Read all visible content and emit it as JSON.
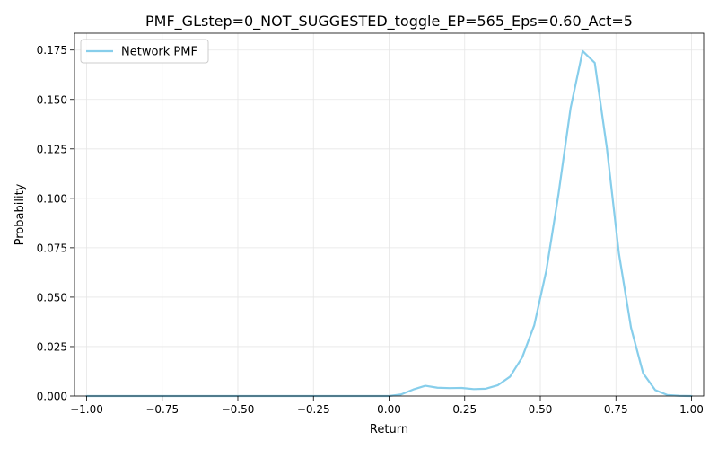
{
  "chart_data": {
    "type": "line",
    "title": "PMF_GLstep=0_NOT_SUGGESTED_toggle_EP=565_Eps=0.60_Act=5",
    "xlabel": "Return",
    "ylabel": "Probability",
    "xlim": [
      -1.04,
      1.04
    ],
    "ylim": [
      0,
      0.1835
    ],
    "grid": true,
    "legend_position": "upper-left",
    "x_ticks": [
      -1.0,
      -0.75,
      -0.5,
      -0.25,
      0.0,
      0.25,
      0.5,
      0.75,
      1.0
    ],
    "x_tick_labels": [
      "−1.00",
      "−0.75",
      "−0.50",
      "−0.25",
      "0.00",
      "0.25",
      "0.50",
      "0.75",
      "1.00"
    ],
    "y_ticks": [
      0.0,
      0.025,
      0.05,
      0.075,
      0.1,
      0.125,
      0.15,
      0.175
    ],
    "y_tick_labels": [
      "0.000",
      "0.025",
      "0.050",
      "0.075",
      "0.100",
      "0.125",
      "0.150",
      "0.175"
    ],
    "series": [
      {
        "name": "Network PMF",
        "color": "#87CEEB",
        "x": [
          -1.0,
          -0.96,
          -0.92,
          -0.88,
          -0.84,
          -0.8,
          -0.76,
          -0.72,
          -0.68,
          -0.64,
          -0.6,
          -0.56,
          -0.52,
          -0.48,
          -0.44,
          -0.4,
          -0.36,
          -0.32,
          -0.28,
          -0.24,
          -0.2,
          -0.16,
          -0.12,
          -0.08,
          -0.04,
          0.0,
          0.04,
          0.08,
          0.12,
          0.16,
          0.2,
          0.24,
          0.28,
          0.32,
          0.36,
          0.4,
          0.44,
          0.48,
          0.52,
          0.56,
          0.6,
          0.64,
          0.68,
          0.72,
          0.76,
          0.8,
          0.84,
          0.88,
          0.92,
          0.96,
          1.0
        ],
        "y": [
          0.0,
          0.0,
          0.0,
          0.0,
          0.0,
          0.0,
          0.0,
          0.0,
          0.0,
          0.0,
          0.0,
          0.0,
          0.0,
          0.0,
          0.0,
          0.0,
          0.0,
          0.0,
          0.0,
          0.0,
          0.0,
          0.0,
          0.0,
          0.0,
          0.0,
          0.0,
          0.0008,
          0.0033,
          0.0052,
          0.0042,
          0.004,
          0.0041,
          0.0035,
          0.0037,
          0.0055,
          0.0098,
          0.0195,
          0.0358,
          0.0635,
          0.102,
          0.1455,
          0.1745,
          0.1685,
          0.1255,
          0.072,
          0.0345,
          0.0115,
          0.003,
          0.0005,
          0.0001,
          0.0
        ]
      }
    ]
  }
}
